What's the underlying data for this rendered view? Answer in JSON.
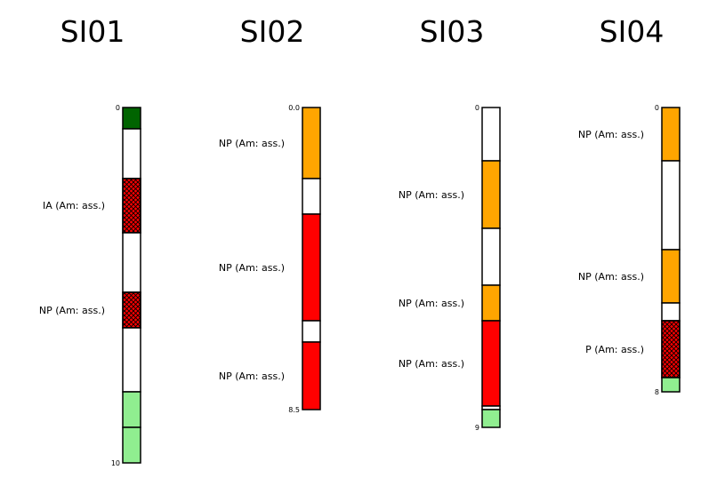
{
  "logs": [
    {
      "title": "SI01",
      "depth_max": 10,
      "top_label": "0",
      "bottom_label": "10",
      "layers": [
        {
          "top": 0.0,
          "bottom": 0.6,
          "fill": "#006400",
          "hatch": false
        },
        {
          "top": 0.6,
          "bottom": 2.0,
          "fill": "#ffffff",
          "hatch": false
        },
        {
          "top": 2.0,
          "bottom": 3.525,
          "fill": "#ff0000",
          "hatch": true
        },
        {
          "top": 3.525,
          "bottom": 5.2,
          "fill": "#ffffff",
          "hatch": false
        },
        {
          "top": 5.2,
          "bottom": 6.2,
          "fill": "#ff0000",
          "hatch": true
        },
        {
          "top": 6.2,
          "bottom": 8.0,
          "fill": "#ffffff",
          "hatch": false
        },
        {
          "top": 8.0,
          "bottom": 9.0,
          "fill": "#90ee90",
          "hatch": false
        },
        {
          "top": 9.0,
          "bottom": 10.0,
          "fill": "#90ee90",
          "hatch": false
        }
      ],
      "annotations": [
        {
          "text": "IA (Am: ass.)",
          "depth": 2.75
        },
        {
          "text": "NP (Am: ass.)",
          "depth": 5.7
        }
      ]
    },
    {
      "title": "SI02",
      "depth_max": 8.5,
      "top_label": "0.0",
      "bottom_label": "8.5",
      "layers": [
        {
          "top": 0.0,
          "bottom": 2.0,
          "fill": "#ffa500",
          "hatch": false
        },
        {
          "top": 2.0,
          "bottom": 3.0,
          "fill": "#ffffff",
          "hatch": false
        },
        {
          "top": 3.0,
          "bottom": 6.0,
          "fill": "#ff0000",
          "hatch": false
        },
        {
          "top": 6.0,
          "bottom": 6.6,
          "fill": "#ffffff",
          "hatch": false
        },
        {
          "top": 6.6,
          "bottom": 8.5,
          "fill": "#ff0000",
          "hatch": false
        }
      ],
      "annotations": [
        {
          "text": "NP (Am: ass.)",
          "depth": 1.0
        },
        {
          "text": "NP (Am: ass.)",
          "depth": 4.5
        },
        {
          "text": "NP (Am: ass.)",
          "depth": 7.55
        }
      ]
    },
    {
      "title": "SI03",
      "depth_max": 9,
      "top_label": "0",
      "bottom_label": "9",
      "layers": [
        {
          "top": 0.0,
          "bottom": 1.5,
          "fill": "#ffffff",
          "hatch": false
        },
        {
          "top": 1.5,
          "bottom": 3.4,
          "fill": "#ffa500",
          "hatch": false
        },
        {
          "top": 3.4,
          "bottom": 5.0,
          "fill": "#ffffff",
          "hatch": false
        },
        {
          "top": 5.0,
          "bottom": 6.0,
          "fill": "#ffa500",
          "hatch": false
        },
        {
          "top": 6.0,
          "bottom": 8.4,
          "fill": "#ff0000",
          "hatch": false
        },
        {
          "top": 8.4,
          "bottom": 8.5,
          "fill": "#ffffff",
          "hatch": false
        },
        {
          "top": 8.5,
          "bottom": 9.0,
          "fill": "#90ee90",
          "hatch": false
        }
      ],
      "annotations": [
        {
          "text": "NP (Am: ass.)",
          "depth": 2.45
        },
        {
          "text": "NP (Am: ass.)",
          "depth": 5.5
        },
        {
          "text": "NP (Am: ass.)",
          "depth": 7.2
        }
      ]
    },
    {
      "title": "SI04",
      "depth_max": 8,
      "top_label": "0",
      "bottom_label": "8",
      "layers": [
        {
          "top": 0.0,
          "bottom": 1.5,
          "fill": "#ffa500",
          "hatch": false
        },
        {
          "top": 1.5,
          "bottom": 4.0,
          "fill": "#ffffff",
          "hatch": false
        },
        {
          "top": 4.0,
          "bottom": 5.5,
          "fill": "#ffa500",
          "hatch": false
        },
        {
          "top": 5.5,
          "bottom": 6.0,
          "fill": "#ffffff",
          "hatch": false
        },
        {
          "top": 6.0,
          "bottom": 7.6,
          "fill": "#ff0000",
          "hatch": true
        },
        {
          "top": 7.6,
          "bottom": 8.0,
          "fill": "#90ee90",
          "hatch": false
        }
      ],
      "annotations": [
        {
          "text": "NP (Am: ass.)",
          "depth": 0.75
        },
        {
          "text": "NP (Am: ass.)",
          "depth": 4.75
        },
        {
          "text": "P (Am: ass.)",
          "depth": 6.8
        }
      ]
    }
  ]
}
